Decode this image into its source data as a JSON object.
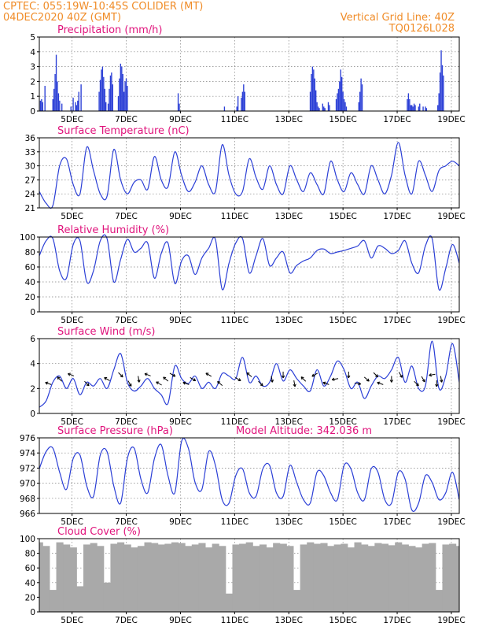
{
  "header": {
    "line1": "CPTEC:   055:19W-10:45S   COLIDER (MT)",
    "line2": "04DEC2020 40Z (GMT)",
    "right1": "Vertical Grid Line: 40Z",
    "right2": "TQ0126L028"
  },
  "colors": {
    "header": "#f08c28",
    "panel_title": "#e0147c",
    "series_line": "#2b3fd6",
    "precip_bar": "#2b3fd6",
    "cloud_bar": "#a9a9a9",
    "arrow": "#000000"
  },
  "chart_data": [
    {
      "id": "precipitation",
      "type": "bar",
      "title": "Precipitation (mm/h)",
      "xlim": [
        0,
        372
      ],
      "ylim": [
        0,
        5
      ],
      "yticks": [
        "0",
        "1",
        "2",
        "3",
        "4",
        "5"
      ],
      "xticks": [
        {
          "label": "5DEC",
          "x": 29
        },
        {
          "label": "7DEC",
          "x": 77
        },
        {
          "label": "9DEC",
          "x": 125
        },
        {
          "label": "11DEC",
          "x": 173
        },
        {
          "label": "13DEC",
          "x": 221
        },
        {
          "label": "15DEC",
          "x": 269
        },
        {
          "label": "17DEC",
          "x": 317
        },
        {
          "label": "19DEC",
          "x": 365
        }
      ],
      "x": [
        1,
        2,
        3,
        5,
        12,
        13,
        14,
        15,
        16,
        17,
        18,
        20,
        28,
        30,
        32,
        33,
        34,
        35,
        37,
        53,
        54,
        55,
        56,
        57,
        58,
        59,
        61,
        62,
        63,
        64,
        65,
        70,
        71,
        72,
        73,
        74,
        75,
        76,
        77,
        78,
        123,
        124,
        164,
        175,
        176,
        179,
        180,
        181,
        182,
        240,
        241,
        242,
        243,
        244,
        245,
        246,
        247,
        248,
        251,
        252,
        253,
        256,
        257,
        263,
        264,
        265,
        266,
        267,
        268,
        269,
        270,
        271,
        272,
        283,
        284,
        285,
        286,
        326,
        327,
        328,
        329,
        330,
        331,
        332,
        333,
        336,
        337,
        340,
        342,
        343,
        353,
        354,
        355,
        356,
        357,
        358
      ],
      "values": [
        0.7,
        0.8,
        0.6,
        1.7,
        0.8,
        1.5,
        2.5,
        3.8,
        2.0,
        1.2,
        0.7,
        0.5,
        0.3,
        0.9,
        0.6,
        0.4,
        0.7,
        1.3,
        1.8,
        1.3,
        2.1,
        2.8,
        3.0,
        2.3,
        1.5,
        0.6,
        0.5,
        1.5,
        2.4,
        2.6,
        1.8,
        1.0,
        2.2,
        3.2,
        3.0,
        2.5,
        1.3,
        2.0,
        2.2,
        1.7,
        1.2,
        0.5,
        0.3,
        0.3,
        1.0,
        0.9,
        1.3,
        1.8,
        1.3,
        1.3,
        2.5,
        3.0,
        2.8,
        2.2,
        1.4,
        0.6,
        0.3,
        0.2,
        0.5,
        0.3,
        0.2,
        0.6,
        0.4,
        0.8,
        1.2,
        1.5,
        2.0,
        2.8,
        2.3,
        1.3,
        0.8,
        0.6,
        0.3,
        0.6,
        1.3,
        2.2,
        1.8,
        0.8,
        1.2,
        0.8,
        0.4,
        0.4,
        0.3,
        0.5,
        0.4,
        0.3,
        0.5,
        0.3,
        0.3,
        0.2,
        0.4,
        1.2,
        2.6,
        4.1,
        3.1,
        2.4
      ]
    },
    {
      "id": "surface_temperature",
      "type": "line",
      "title": "Surface Temperature (nC)",
      "xlim": [
        0,
        372
      ],
      "ylim": [
        21,
        36
      ],
      "yticks": [
        "21",
        "24",
        "27",
        "30",
        "33",
        "36"
      ],
      "x": [
        0,
        6,
        12,
        18,
        24,
        30,
        36,
        42,
        48,
        54,
        60,
        66,
        72,
        78,
        84,
        90,
        96,
        102,
        108,
        114,
        120,
        126,
        132,
        138,
        144,
        150,
        156,
        162,
        168,
        174,
        180,
        186,
        192,
        198,
        204,
        210,
        216,
        222,
        228,
        234,
        240,
        246,
        252,
        258,
        264,
        270,
        276,
        282,
        288,
        294,
        300,
        306,
        312,
        318,
        324,
        330,
        336,
        342,
        348,
        354,
        360,
        366,
        372
      ],
      "values": [
        24.5,
        22.0,
        21.5,
        30.0,
        31.5,
        26.0,
        24.0,
        34.0,
        29.0,
        24.0,
        23.5,
        33.5,
        27.0,
        24.0,
        26.5,
        27.0,
        25.0,
        32.0,
        27.0,
        25.5,
        33.0,
        28.0,
        24.5,
        26.5,
        30.0,
        26.0,
        24.5,
        34.5,
        28.0,
        24.0,
        24.5,
        31.5,
        27.5,
        25.0,
        30.0,
        26.0,
        24.0,
        30.0,
        27.0,
        24.5,
        28.5,
        26.0,
        24.0,
        31.0,
        27.0,
        24.5,
        28.5,
        26.0,
        24.0,
        30.0,
        27.0,
        24.0,
        28.0,
        35.0,
        28.0,
        24.0,
        31.0,
        28.0,
        24.5,
        29.0,
        30.0,
        31.0,
        30.0
      ]
    },
    {
      "id": "relative_humidity",
      "type": "line",
      "title": "Relative Humidity (%)",
      "xlim": [
        0,
        372
      ],
      "ylim": [
        0,
        100
      ],
      "yticks": [
        "0",
        "20",
        "40",
        "60",
        "80",
        "100"
      ],
      "x": [
        0,
        6,
        12,
        18,
        24,
        30,
        36,
        42,
        48,
        54,
        60,
        66,
        72,
        78,
        84,
        90,
        96,
        102,
        108,
        114,
        120,
        126,
        132,
        138,
        144,
        150,
        156,
        162,
        168,
        174,
        180,
        186,
        192,
        198,
        204,
        210,
        216,
        222,
        228,
        234,
        240,
        246,
        252,
        258,
        264,
        270,
        276,
        282,
        288,
        294,
        300,
        306,
        312,
        318,
        324,
        330,
        336,
        342,
        348,
        354,
        360,
        366,
        372
      ],
      "values": [
        75,
        95,
        98,
        55,
        45,
        90,
        95,
        40,
        55,
        95,
        98,
        40,
        70,
        97,
        80,
        85,
        92,
        45,
        78,
        92,
        38,
        68,
        75,
        50,
        72,
        85,
        97,
        30,
        65,
        92,
        98,
        52,
        75,
        98,
        62,
        72,
        80,
        52,
        62,
        68,
        72,
        82,
        84,
        78,
        80,
        82,
        85,
        88,
        95,
        72,
        88,
        85,
        78,
        82,
        95,
        65,
        52,
        88,
        98,
        30,
        58,
        90,
        65
      ]
    },
    {
      "id": "surface_wind",
      "type": "line",
      "title": "Surface Wind (m/s)",
      "xlim": [
        0,
        372
      ],
      "ylim": [
        0,
        6
      ],
      "yticks": [
        "0",
        "2",
        "4",
        "6"
      ],
      "x": [
        0,
        6,
        12,
        18,
        24,
        30,
        36,
        42,
        48,
        54,
        60,
        66,
        72,
        78,
        84,
        90,
        96,
        102,
        108,
        114,
        120,
        126,
        132,
        138,
        144,
        150,
        156,
        162,
        168,
        174,
        180,
        186,
        192,
        198,
        204,
        210,
        216,
        222,
        228,
        234,
        240,
        246,
        252,
        258,
        264,
        270,
        276,
        282,
        288,
        294,
        300,
        306,
        312,
        318,
        324,
        330,
        336,
        342,
        348,
        354,
        360,
        366,
        372
      ],
      "values": [
        0.5,
        1.0,
        2.5,
        3.0,
        2.0,
        2.8,
        1.5,
        2.5,
        2.2,
        2.8,
        2.0,
        3.5,
        4.8,
        2.5,
        1.8,
        2.2,
        2.8,
        2.0,
        1.5,
        0.8,
        3.8,
        2.8,
        2.4,
        3.0,
        2.0,
        2.5,
        2.0,
        3.2,
        3.0,
        2.8,
        4.5,
        2.5,
        3.0,
        2.2,
        2.5,
        4.0,
        2.6,
        3.5,
        2.8,
        2.2,
        1.8,
        3.5,
        2.2,
        3.0,
        4.2,
        3.5,
        2.0,
        2.5,
        1.2,
        2.2,
        3.0,
        2.8,
        3.5,
        4.5,
        2.5,
        3.8,
        2.0,
        2.2,
        5.8,
        2.0,
        3.0,
        5.6,
        2.5
      ],
      "arrows_x": [
        8,
        18,
        28,
        42,
        60,
        72,
        80,
        88,
        96,
        106,
        112,
        118,
        130,
        136,
        150,
        160,
        176,
        186,
        196,
        206,
        216,
        226,
        234,
        244,
        254,
        262,
        274,
        282,
        290,
        298,
        302,
        312,
        320,
        334,
        340,
        348,
        352,
        356
      ],
      "arrows_angle_deg": [
        160,
        135,
        160,
        -45,
        150,
        -45,
        -60,
        -80,
        160,
        150,
        140,
        -30,
        160,
        -30,
        150,
        140,
        -30,
        140,
        -45,
        -80,
        -90,
        -80,
        135,
        -150,
        160,
        -170,
        -90,
        -10,
        -40,
        -45,
        160,
        -90,
        -60,
        -45,
        -60,
        -170,
        -90,
        -80
      ]
    },
    {
      "id": "surface_pressure",
      "type": "line",
      "title": "Surface Pressure (hPa)",
      "subtitle": "Model Altitude: 342.036 m",
      "xlim": [
        0,
        372
      ],
      "ylim": [
        965,
        976
      ],
      "yticks": [
        "966",
        "968",
        "970",
        "972",
        "974",
        "976"
      ],
      "x": [
        0,
        6,
        12,
        18,
        24,
        30,
        36,
        42,
        48,
        54,
        60,
        66,
        72,
        78,
        84,
        90,
        96,
        102,
        108,
        114,
        120,
        126,
        132,
        138,
        144,
        150,
        156,
        162,
        168,
        174,
        180,
        186,
        192,
        198,
        204,
        210,
        216,
        222,
        228,
        234,
        240,
        246,
        252,
        258,
        264,
        270,
        276,
        282,
        288,
        294,
        300,
        306,
        312,
        318,
        324,
        330,
        336,
        342,
        348,
        354,
        360,
        366,
        372
      ],
      "values": [
        971.5,
        974.0,
        974.5,
        971.0,
        968.5,
        973.0,
        973.5,
        969.0,
        967.5,
        973.5,
        974.0,
        969.0,
        966.5,
        973.0,
        974.5,
        970.0,
        968.0,
        973.0,
        975.0,
        970.5,
        968.0,
        975.5,
        974.5,
        969.5,
        968.5,
        974.0,
        972.0,
        967.0,
        966.5,
        970.5,
        971.5,
        968.0,
        967.5,
        971.5,
        972.0,
        968.0,
        967.5,
        972.0,
        969.5,
        967.0,
        966.5,
        971.0,
        970.5,
        968.0,
        967.0,
        972.0,
        971.5,
        968.0,
        967.0,
        971.5,
        971.0,
        967.0,
        966.5,
        971.0,
        970.0,
        965.5,
        966.5,
        970.5,
        969.5,
        967.0,
        968.0,
        971.0,
        967.0
      ]
    },
    {
      "id": "cloud_cover",
      "type": "area",
      "title": "Cloud Cover (%)",
      "xlim": [
        0,
        372
      ],
      "ylim": [
        0,
        100
      ],
      "yticks": [
        "0",
        "20",
        "40",
        "60",
        "80",
        "100"
      ],
      "x": [
        0,
        6,
        12,
        18,
        24,
        30,
        36,
        42,
        48,
        54,
        60,
        66,
        72,
        78,
        84,
        90,
        96,
        102,
        108,
        114,
        120,
        126,
        132,
        138,
        144,
        150,
        156,
        162,
        168,
        174,
        180,
        186,
        192,
        198,
        204,
        210,
        216,
        222,
        228,
        234,
        240,
        246,
        252,
        258,
        264,
        270,
        276,
        282,
        288,
        294,
        300,
        306,
        312,
        318,
        324,
        330,
        336,
        342,
        348,
        354,
        360,
        366,
        372
      ],
      "values": [
        95,
        90,
        30,
        95,
        92,
        88,
        35,
        92,
        94,
        90,
        40,
        93,
        95,
        92,
        88,
        90,
        95,
        94,
        92,
        93,
        95,
        94,
        90,
        92,
        94,
        88,
        93,
        90,
        25,
        92,
        93,
        95,
        90,
        92,
        88,
        94,
        93,
        90,
        30,
        92,
        95,
        93,
        94,
        90,
        92,
        93,
        88,
        95,
        92,
        90,
        94,
        93,
        91,
        95,
        92,
        90,
        88,
        93,
        94,
        30,
        92,
        93,
        90
      ]
    }
  ]
}
